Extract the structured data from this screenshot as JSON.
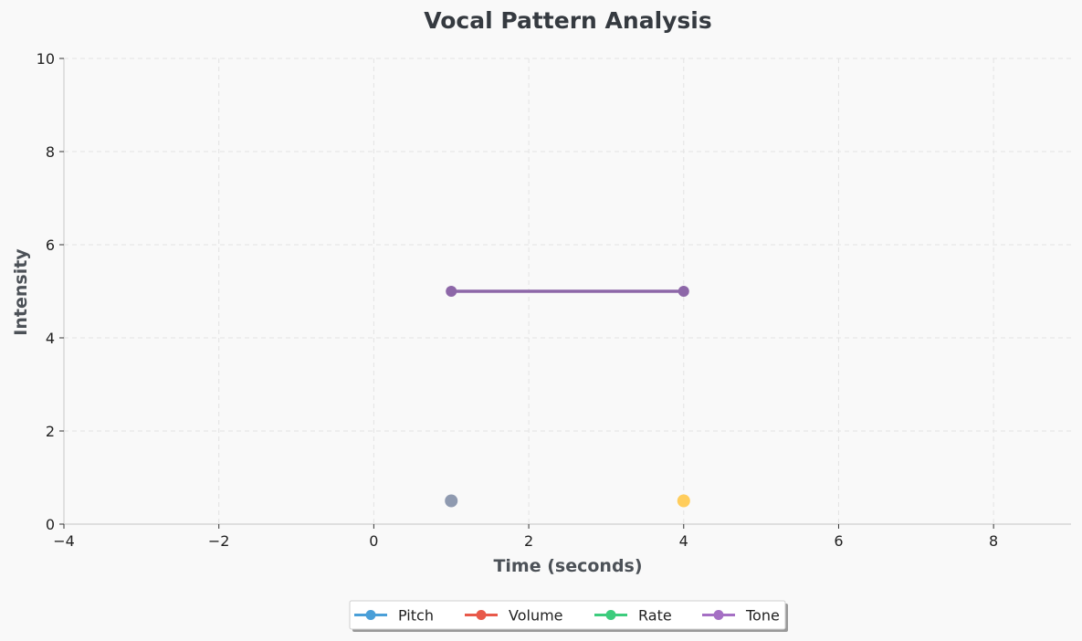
{
  "chart_data": {
    "type": "line",
    "title": "Vocal Pattern Analysis",
    "xlabel": "Time (seconds)",
    "ylabel": "Intensity",
    "xlim": [
      -4,
      9
    ],
    "ylim": [
      0,
      10
    ],
    "xticks": [
      -4,
      -2,
      0,
      2,
      4,
      6,
      8
    ],
    "xtick_labels": [
      "−4",
      "−2",
      "0",
      "2",
      "4",
      "6",
      "8"
    ],
    "yticks": [
      0,
      2,
      4,
      6,
      8,
      10
    ],
    "ytick_labels": [
      "0",
      "2",
      "4",
      "6",
      "8",
      "10"
    ],
    "grid": true,
    "legend_position": "bottom-center",
    "series": [
      {
        "name": "Pitch",
        "color": "#4a9fd8",
        "points": []
      },
      {
        "name": "Volume",
        "color": "#e8594a",
        "points": []
      },
      {
        "name": "Rate",
        "color": "#3dcc7d",
        "points": []
      },
      {
        "name": "Tone",
        "color": "#8d67a8",
        "legend_color": "#a56fc4",
        "points": [
          [
            1,
            5
          ],
          [
            4,
            5
          ]
        ]
      }
    ],
    "markers": [
      {
        "x": 1,
        "y": 0.5,
        "color": "#8f9ab0"
      },
      {
        "x": 4,
        "y": 0.5,
        "color": "#ffcd5c"
      }
    ]
  }
}
